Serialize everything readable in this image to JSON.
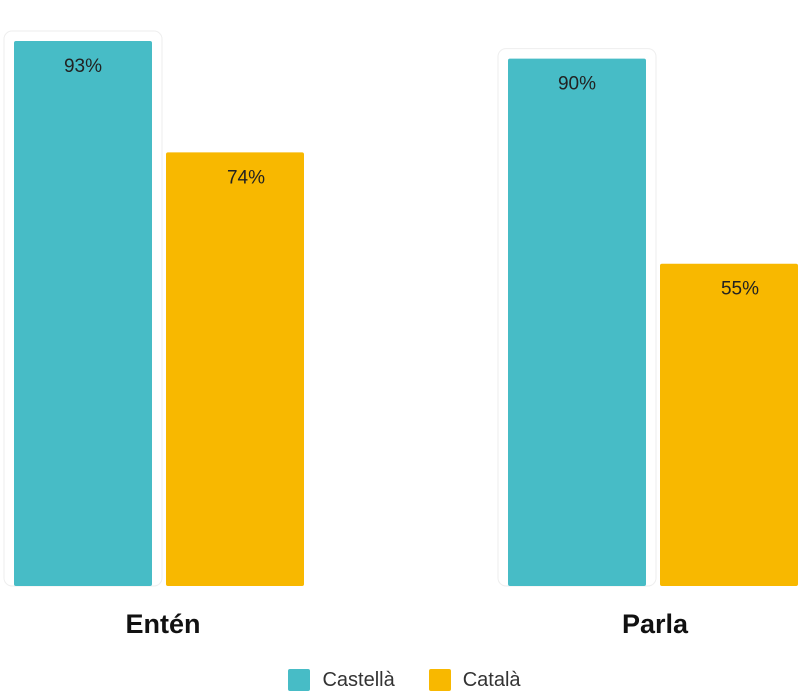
{
  "chart_data": {
    "type": "bar",
    "categories": [
      "Entén",
      "Parla"
    ],
    "series": [
      {
        "name": "Castellà",
        "color": "#47BCC6",
        "values": [
          93,
          90
        ],
        "labels": [
          "93%",
          "90%"
        ]
      },
      {
        "name": "Català",
        "color": "#F8B800",
        "values": [
          74,
          55
        ],
        "labels": [
          "74%",
          "55%"
        ]
      }
    ],
    "ylim": [
      0,
      100
    ],
    "grid": false,
    "legend_position": "bottom-center"
  }
}
